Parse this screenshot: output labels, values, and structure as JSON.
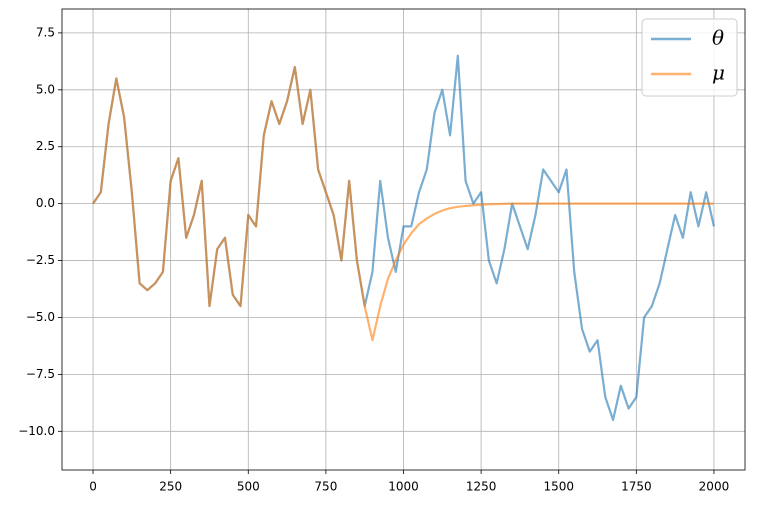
{
  "chart_data": {
    "type": "line",
    "x": [
      0,
      25,
      50,
      75,
      100,
      125,
      150,
      175,
      200,
      225,
      250,
      275,
      300,
      325,
      350,
      375,
      400,
      425,
      450,
      475,
      500,
      525,
      550,
      575,
      600,
      625,
      650,
      675,
      700,
      725,
      750,
      775,
      800,
      825,
      850,
      875,
      900,
      925,
      950,
      975,
      1000,
      1025,
      1050,
      1075,
      1100,
      1125,
      1150,
      1175,
      1200,
      1225,
      1250,
      1275,
      1300,
      1325,
      1350,
      1375,
      1400,
      1425,
      1450,
      1475,
      1500,
      1525,
      1550,
      1575,
      1600,
      1625,
      1650,
      1675,
      1700,
      1725,
      1750,
      1775,
      1800,
      1825,
      1850,
      1875,
      1900,
      1925,
      1950,
      1975,
      2000
    ],
    "series": [
      {
        "name": "θ",
        "color": "#1f77b4",
        "alpha": 0.6,
        "values": [
          0,
          0.5,
          3.5,
          5.5,
          3.8,
          0.5,
          -3.5,
          -3.8,
          -3.5,
          -3,
          1,
          2,
          -1.5,
          -0.5,
          1,
          -4.5,
          -2,
          -1.5,
          -4,
          -4.5,
          -0.5,
          -1,
          3,
          4.5,
          3.5,
          4.5,
          6,
          3.5,
          5,
          1.5,
          0.5,
          -0.5,
          -2.5,
          1,
          -2.5,
          -4.5,
          -3,
          1,
          -1.5,
          -3,
          -1,
          -1,
          0.5,
          1.5,
          4,
          5,
          3,
          6.5,
          1,
          0,
          0.5,
          -2.5,
          -3.5,
          -2,
          0,
          -1,
          -2,
          -0.5,
          1.5,
          1,
          0.5,
          1.5,
          -3,
          -5.5,
          -6.5,
          -6,
          -8.5,
          -9.5,
          -8,
          -9,
          -8.5,
          -5,
          -4.5,
          -3.5,
          -2,
          -0.5,
          -1.5,
          0.5,
          -1,
          0.5,
          -1
        ]
      },
      {
        "name": "μ",
        "color": "#ff7f0e",
        "alpha": 0.6,
        "values": [
          0,
          0.5,
          3.5,
          5.5,
          3.8,
          0.5,
          -3.5,
          -3.8,
          -3.5,
          -3,
          1,
          2,
          -1.5,
          -0.5,
          1,
          -4.5,
          -2,
          -1.5,
          -4,
          -4.5,
          -0.5,
          -1,
          3,
          4.5,
          3.5,
          4.5,
          6,
          3.5,
          5,
          1.5,
          0.5,
          -0.5,
          -2.5,
          1,
          -2.5,
          -4.5,
          -6,
          -4.5,
          -3.3,
          -2.5,
          -1.8,
          -1.3,
          -0.9,
          -0.65,
          -0.45,
          -0.3,
          -0.2,
          -0.14,
          -0.1,
          -0.07,
          -0.05,
          -0.03,
          -0.02,
          -0.01,
          0,
          0,
          0,
          0,
          0,
          0,
          0,
          0,
          0,
          0,
          0,
          0,
          0,
          0,
          0,
          0,
          0,
          0,
          0,
          0,
          0,
          0,
          0,
          0,
          0,
          0,
          0
        ]
      }
    ],
    "xlim": [
      -100,
      2100
    ],
    "xticks": [
      0,
      250,
      500,
      750,
      1000,
      1250,
      1500,
      1750,
      2000
    ],
    "ylim": [
      -11.7,
      8.55
    ],
    "yticks": [
      {
        "value": -10,
        "label": "−10.0"
      },
      {
        "value": -7.5,
        "label": "−7.5"
      },
      {
        "value": -5,
        "label": "−5.0"
      },
      {
        "value": -2.5,
        "label": "−2.5"
      },
      {
        "value": 0,
        "label": "0.0"
      },
      {
        "value": 2.5,
        "label": "2.5"
      },
      {
        "value": 5,
        "label": "5.0"
      },
      {
        "value": 7.5,
        "label": "7.5"
      }
    ],
    "grid": true,
    "legend": "upper right"
  }
}
